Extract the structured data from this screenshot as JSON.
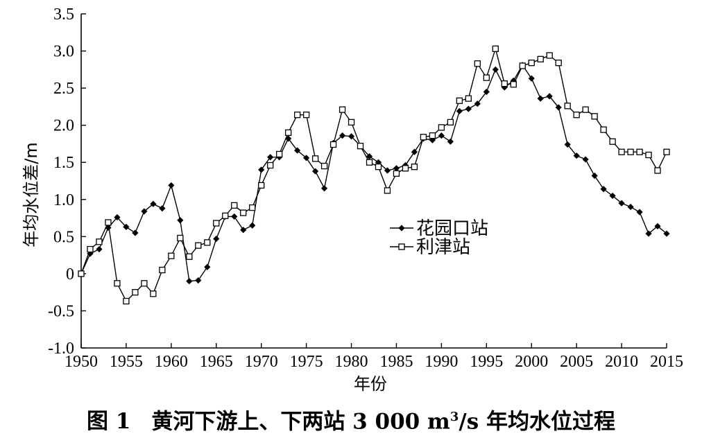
{
  "caption": {
    "figure_number": "图 1",
    "title_before_sup": "黄河下游上、下两站 3 000 m",
    "superscript": "3",
    "title_after_sup": "/s 年均水位过程"
  },
  "chart_data": {
    "type": "line",
    "title": "",
    "xlabel": "年份",
    "ylabel": "年均水位差/m",
    "xlim": [
      1950,
      2015
    ],
    "ylim": [
      -1.0,
      3.5
    ],
    "x_ticks": [
      1950,
      1955,
      1960,
      1965,
      1970,
      1975,
      1980,
      1985,
      1990,
      1995,
      2000,
      2005,
      2010,
      2015
    ],
    "y_ticks": [
      -1.0,
      -0.5,
      0,
      0.5,
      1.0,
      1.5,
      2.0,
      2.5,
      3.0,
      3.5
    ],
    "y_tick_labels": [
      "-1.0",
      "-0.5",
      "0",
      "0.5",
      "1.0",
      "1.5",
      "2.0",
      "2.5",
      "3.0",
      "3.5"
    ],
    "grid": false,
    "legend_position": "center-right",
    "series": [
      {
        "name": "花园口站",
        "marker": "filled-diamond",
        "color": "#000000",
        "x": [
          1950,
          1951,
          1952,
          1953,
          1954,
          1955,
          1956,
          1957,
          1958,
          1959,
          1960,
          1961,
          1962,
          1963,
          1964,
          1965,
          1966,
          1967,
          1968,
          1969,
          1970,
          1971,
          1972,
          1973,
          1974,
          1975,
          1976,
          1977,
          1978,
          1979,
          1980,
          1981,
          1982,
          1983,
          1984,
          1985,
          1986,
          1987,
          1988,
          1989,
          1990,
          1991,
          1992,
          1993,
          1994,
          1995,
          1996,
          1997,
          1998,
          1999,
          2000,
          2001,
          2002,
          2003,
          2004,
          2005,
          2006,
          2007,
          2008,
          2009,
          2010,
          2011,
          2012,
          2013,
          2014,
          2015
        ],
        "y": [
          0.0,
          0.27,
          0.33,
          0.62,
          0.76,
          0.63,
          0.55,
          0.84,
          0.94,
          0.88,
          1.19,
          0.72,
          -0.1,
          -0.09,
          0.09,
          0.47,
          0.77,
          0.77,
          0.59,
          0.65,
          1.4,
          1.57,
          1.57,
          1.82,
          1.66,
          1.56,
          1.38,
          1.15,
          1.76,
          1.86,
          1.85,
          1.72,
          1.58,
          1.5,
          1.39,
          1.42,
          1.46,
          1.64,
          1.82,
          1.8,
          1.86,
          1.78,
          2.19,
          2.22,
          2.29,
          2.45,
          2.75,
          2.51,
          2.6,
          2.81,
          2.63,
          2.36,
          2.39,
          2.24,
          1.74,
          1.59,
          1.54,
          1.32,
          1.14,
          1.05,
          0.95,
          0.9,
          0.83,
          0.54,
          0.64,
          0.54
        ]
      },
      {
        "name": "利津站",
        "marker": "open-square",
        "color": "#000000",
        "x": [
          1950,
          1951,
          1952,
          1953,
          1954,
          1955,
          1956,
          1957,
          1958,
          1959,
          1960,
          1961,
          1962,
          1963,
          1964,
          1965,
          1966,
          1967,
          1968,
          1969,
          1970,
          1971,
          1972,
          1973,
          1974,
          1975,
          1976,
          1977,
          1978,
          1979,
          1980,
          1981,
          1982,
          1983,
          1984,
          1985,
          1986,
          1987,
          1988,
          1989,
          1990,
          1991,
          1992,
          1993,
          1994,
          1995,
          1996,
          1997,
          1998,
          1999,
          2000,
          2001,
          2002,
          2003,
          2004,
          2005,
          2006,
          2007,
          2008,
          2009,
          2010,
          2011,
          2012,
          2013,
          2014,
          2015
        ],
        "y": [
          0.0,
          0.33,
          0.43,
          0.69,
          -0.13,
          -0.37,
          -0.25,
          -0.13,
          -0.27,
          0.05,
          0.24,
          0.48,
          0.23,
          0.38,
          0.42,
          0.68,
          0.78,
          0.92,
          0.82,
          0.89,
          1.19,
          1.46,
          1.61,
          1.9,
          2.14,
          2.14,
          1.55,
          1.45,
          1.74,
          2.21,
          2.04,
          1.72,
          1.5,
          1.44,
          1.12,
          1.35,
          1.42,
          1.44,
          1.84,
          1.86,
          1.97,
          2.04,
          2.33,
          2.36,
          2.83,
          2.64,
          3.03,
          2.56,
          2.55,
          2.8,
          2.84,
          2.89,
          2.94,
          2.84,
          2.26,
          2.14,
          2.21,
          2.12,
          1.94,
          1.78,
          1.64,
          1.64,
          1.64,
          1.6,
          1.39,
          1.64
        ]
      }
    ]
  }
}
